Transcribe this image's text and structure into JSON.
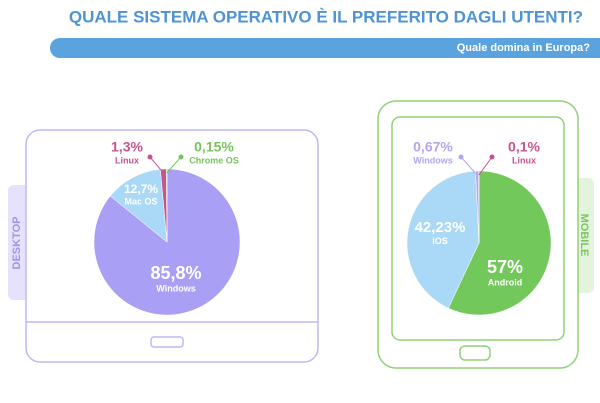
{
  "header": {
    "title": "QUALE SISTEMA OPERATIVO È IL PREFERITO DAGLI UTENTI?",
    "subtitle": "Quale domina in Europa?"
  },
  "chart_data": [
    {
      "type": "pie",
      "label": "DESKTOP",
      "categories": [
        "Windows",
        "Mac OS",
        "Linux",
        "Chrome OS"
      ],
      "values": [
        85.8,
        12.7,
        1.3,
        0.15
      ],
      "value_labels": [
        "85,8%",
        "12,7%",
        "1,3%",
        "0,15%"
      ],
      "colors": [
        "#a99ff5",
        "#a9d9f7",
        "#c4558f",
        "#78c35b"
      ]
    },
    {
      "type": "pie",
      "label": "MOBILE",
      "categories": [
        "Android",
        "iOS",
        "Windows",
        "Linux"
      ],
      "values": [
        57,
        42.23,
        0.67,
        0.1
      ],
      "value_labels": [
        "57%",
        "42,23%",
        "0,67%",
        "0,1%"
      ],
      "colors": [
        "#72c85a",
        "#a9d9f7",
        "#b3a5f1",
        "#c4558f"
      ]
    }
  ]
}
